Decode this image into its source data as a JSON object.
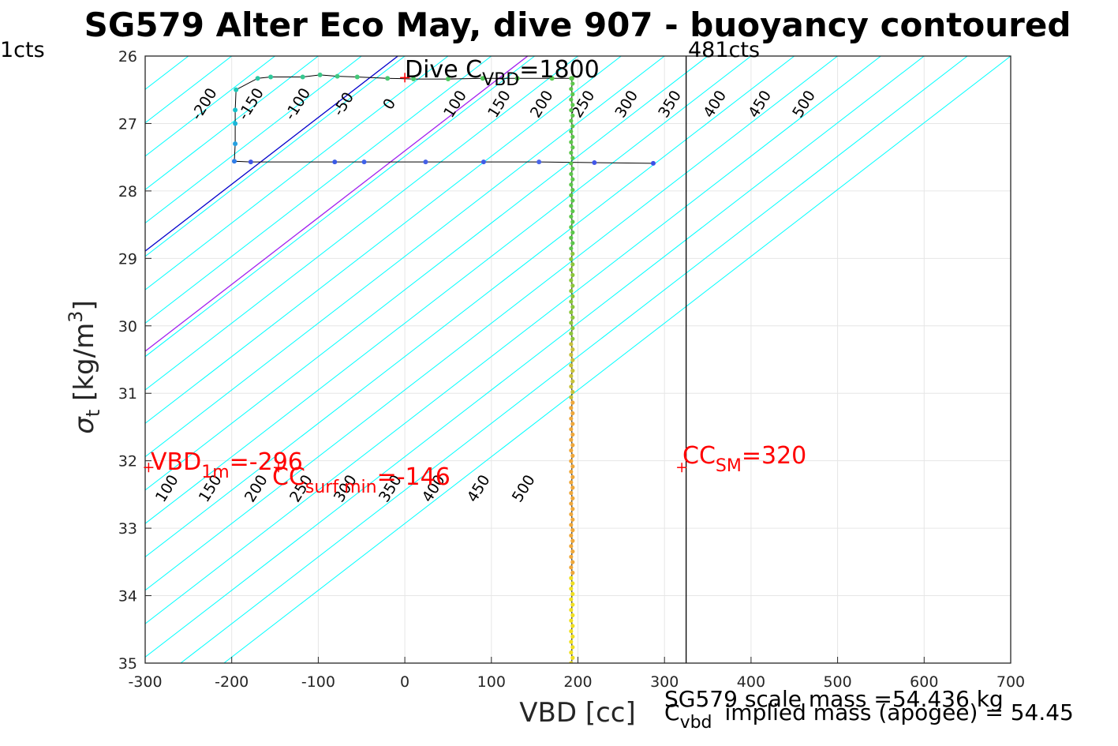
{
  "title": "SG579 Alter Eco May, dive 907 - buoyancy contoured",
  "chart_data": {
    "type": "scatter",
    "title": "SG579 Alter Eco May, dive 907 - buoyancy contoured",
    "xlabel": "VBD [cc]",
    "ylabel": "σ_t [kg/m^3]",
    "xlim": [
      -300,
      700
    ],
    "ylim": [
      26,
      35
    ],
    "y_reversed": true,
    "grid": true,
    "xticks": [
      -300,
      -200,
      -100,
      0,
      100,
      200,
      300,
      400,
      500,
      600,
      700
    ],
    "yticks": [
      26,
      27,
      28,
      29,
      30,
      31,
      32,
      33,
      34,
      35
    ],
    "contour_levels_upper": [
      -200,
      -150,
      -100,
      -50,
      0,
      100,
      150,
      200,
      250,
      300,
      350,
      400,
      450,
      500
    ],
    "contour_levels_lower": [
      100,
      150,
      200,
      250,
      300,
      350,
      400,
      450,
      500
    ],
    "highlight_contours": [
      {
        "vbd_at_top": 0,
        "color": "#0000cc"
      },
      {
        "vbd_at_top": 150,
        "color": "#a020f0"
      }
    ],
    "profile_upper_left": [
      {
        "x": 287,
        "y": 27.59
      },
      {
        "x": 219,
        "y": 27.58
      },
      {
        "x": 155,
        "y": 27.57
      },
      {
        "x": 91,
        "y": 27.57
      },
      {
        "x": 24,
        "y": 27.57
      },
      {
        "x": -47,
        "y": 27.57
      },
      {
        "x": -81,
        "y": 27.57
      },
      {
        "x": -178,
        "y": 27.57
      },
      {
        "x": -197,
        "y": 27.56
      },
      {
        "x": -196,
        "y": 27.3
      },
      {
        "x": -196,
        "y": 27.0
      },
      {
        "x": -196,
        "y": 26.8
      },
      {
        "x": -195,
        "y": 26.5
      },
      {
        "x": -170,
        "y": 26.33
      },
      {
        "x": -155,
        "y": 26.31
      },
      {
        "x": -118,
        "y": 26.31
      },
      {
        "x": -98,
        "y": 26.28
      },
      {
        "x": -78,
        "y": 26.3
      },
      {
        "x": -55,
        "y": 26.31
      },
      {
        "x": -20,
        "y": 26.33
      },
      {
        "x": 10,
        "y": 26.34
      },
      {
        "x": 50,
        "y": 26.34
      },
      {
        "x": 90,
        "y": 26.33
      },
      {
        "x": 130,
        "y": 26.33
      },
      {
        "x": 170,
        "y": 26.33
      },
      {
        "x": 193,
        "y": 26.33
      }
    ],
    "profile_vertical": {
      "x": 193,
      "y_from": 26.33,
      "y_to": 35.0
    },
    "annotations": {
      "dive_cvbd_label": "Dive C",
      "dive_cvbd_sub": "VBD",
      "dive_cvbd_value": "=1800",
      "dive_cvbd_marker": {
        "x": 0,
        "y": 26.32
      },
      "vbd_1m_label": "VBD",
      "vbd_1m_sub": "1m",
      "vbd_1m_value": "=-296",
      "vbd_1m_marker": {
        "x": -296,
        "y": 32.1
      },
      "cc_surf_label": "CC",
      "cc_surf_sub": "surf min",
      "cc_surf_value": "=-146",
      "cc_surf_marker": {
        "x": -146,
        "y": 32.1
      },
      "cc_sm_label": "CC",
      "cc_sm_sub": "SM",
      "cc_sm_value": "=320",
      "cc_sm_marker": {
        "x": 320,
        "y": 32.1
      },
      "left_cts": "1cts",
      "right_cts": "481cts",
      "right_cts_x": 325,
      "scale_mass": "SG579 scale mass =54.436 kg",
      "implied_prefix": "C",
      "implied_sub": "vbd",
      "implied_mass": "implied mass (apogee) = 54.45"
    },
    "colors": {
      "contours": "#00ffff",
      "trace": "#000000",
      "markers": "#ff0000"
    }
  }
}
